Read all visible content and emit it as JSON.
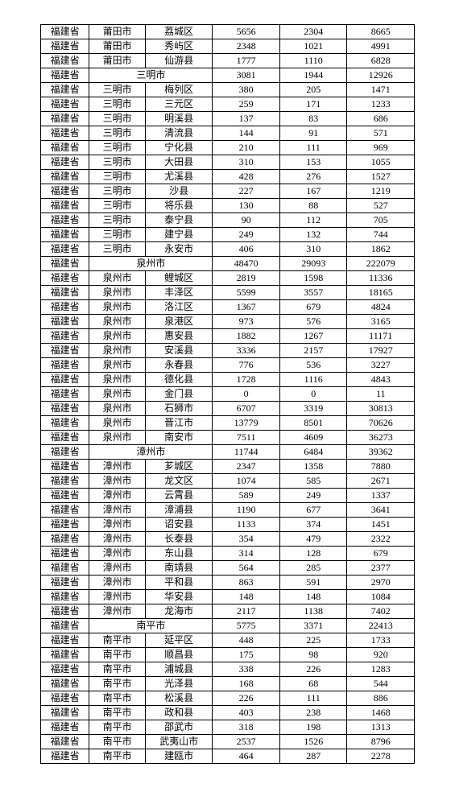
{
  "rows": [
    {
      "province": "福建省",
      "city": "莆田市",
      "district": "荔城区",
      "v1": "5656",
      "v2": "2304",
      "v3": "8665"
    },
    {
      "province": "福建省",
      "city": "莆田市",
      "district": "秀屿区",
      "v1": "2348",
      "v2": "1021",
      "v3": "4991"
    },
    {
      "province": "福建省",
      "city": "莆田市",
      "district": "仙游县",
      "v1": "1777",
      "v2": "1110",
      "v3": "6828"
    },
    {
      "province": "福建省",
      "subtotal": "三明市",
      "v1": "3081",
      "v2": "1944",
      "v3": "12926"
    },
    {
      "province": "福建省",
      "city": "三明市",
      "district": "梅列区",
      "v1": "380",
      "v2": "205",
      "v3": "1471"
    },
    {
      "province": "福建省",
      "city": "三明市",
      "district": "三元区",
      "v1": "259",
      "v2": "171",
      "v3": "1233"
    },
    {
      "province": "福建省",
      "city": "三明市",
      "district": "明溪县",
      "v1": "137",
      "v2": "83",
      "v3": "686"
    },
    {
      "province": "福建省",
      "city": "三明市",
      "district": "清流县",
      "v1": "144",
      "v2": "91",
      "v3": "571"
    },
    {
      "province": "福建省",
      "city": "三明市",
      "district": "宁化县",
      "v1": "210",
      "v2": "111",
      "v3": "969"
    },
    {
      "province": "福建省",
      "city": "三明市",
      "district": "大田县",
      "v1": "310",
      "v2": "153",
      "v3": "1055"
    },
    {
      "province": "福建省",
      "city": "三明市",
      "district": "尤溪县",
      "v1": "428",
      "v2": "276",
      "v3": "1527"
    },
    {
      "province": "福建省",
      "city": "三明市",
      "district": "沙县",
      "v1": "227",
      "v2": "167",
      "v3": "1219"
    },
    {
      "province": "福建省",
      "city": "三明市",
      "district": "将乐县",
      "v1": "130",
      "v2": "88",
      "v3": "527"
    },
    {
      "province": "福建省",
      "city": "三明市",
      "district": "泰宁县",
      "v1": "90",
      "v2": "112",
      "v3": "705"
    },
    {
      "province": "福建省",
      "city": "三明市",
      "district": "建宁县",
      "v1": "249",
      "v2": "132",
      "v3": "744"
    },
    {
      "province": "福建省",
      "city": "三明市",
      "district": "永安市",
      "v1": "406",
      "v2": "310",
      "v3": "1862"
    },
    {
      "province": "福建省",
      "subtotal": "泉州市",
      "v1": "48470",
      "v2": "29093",
      "v3": "222079"
    },
    {
      "province": "福建省",
      "city": "泉州市",
      "district": "鲤城区",
      "v1": "2819",
      "v2": "1598",
      "v3": "11336"
    },
    {
      "province": "福建省",
      "city": "泉州市",
      "district": "丰泽区",
      "v1": "5599",
      "v2": "3557",
      "v3": "18165"
    },
    {
      "province": "福建省",
      "city": "泉州市",
      "district": "洛江区",
      "v1": "1367",
      "v2": "679",
      "v3": "4824"
    },
    {
      "province": "福建省",
      "city": "泉州市",
      "district": "泉港区",
      "v1": "973",
      "v2": "576",
      "v3": "3165"
    },
    {
      "province": "福建省",
      "city": "泉州市",
      "district": "惠安县",
      "v1": "1882",
      "v2": "1267",
      "v3": "11171"
    },
    {
      "province": "福建省",
      "city": "泉州市",
      "district": "安溪县",
      "v1": "3336",
      "v2": "2157",
      "v3": "17927"
    },
    {
      "province": "福建省",
      "city": "泉州市",
      "district": "永春县",
      "v1": "776",
      "v2": "536",
      "v3": "3227"
    },
    {
      "province": "福建省",
      "city": "泉州市",
      "district": "德化县",
      "v1": "1728",
      "v2": "1116",
      "v3": "4843"
    },
    {
      "province": "福建省",
      "city": "泉州市",
      "district": "金门县",
      "v1": "0",
      "v2": "0",
      "v3": "11"
    },
    {
      "province": "福建省",
      "city": "泉州市",
      "district": "石狮市",
      "v1": "6707",
      "v2": "3319",
      "v3": "30813"
    },
    {
      "province": "福建省",
      "city": "泉州市",
      "district": "晋江市",
      "v1": "13779",
      "v2": "8501",
      "v3": "70626"
    },
    {
      "province": "福建省",
      "city": "泉州市",
      "district": "南安市",
      "v1": "7511",
      "v2": "4609",
      "v3": "36273"
    },
    {
      "province": "福建省",
      "subtotal": "漳州市",
      "v1": "11744",
      "v2": "6484",
      "v3": "39362"
    },
    {
      "province": "福建省",
      "city": "漳州市",
      "district": "芗城区",
      "v1": "2347",
      "v2": "1358",
      "v3": "7880"
    },
    {
      "province": "福建省",
      "city": "漳州市",
      "district": "龙文区",
      "v1": "1074",
      "v2": "585",
      "v3": "2671"
    },
    {
      "province": "福建省",
      "city": "漳州市",
      "district": "云霄县",
      "v1": "589",
      "v2": "249",
      "v3": "1337"
    },
    {
      "province": "福建省",
      "city": "漳州市",
      "district": "漳浦县",
      "v1": "1190",
      "v2": "677",
      "v3": "3641"
    },
    {
      "province": "福建省",
      "city": "漳州市",
      "district": "诏安县",
      "v1": "1133",
      "v2": "374",
      "v3": "1451"
    },
    {
      "province": "福建省",
      "city": "漳州市",
      "district": "长泰县",
      "v1": "354",
      "v2": "479",
      "v3": "2322"
    },
    {
      "province": "福建省",
      "city": "漳州市",
      "district": "东山县",
      "v1": "314",
      "v2": "128",
      "v3": "679"
    },
    {
      "province": "福建省",
      "city": "漳州市",
      "district": "南靖县",
      "v1": "564",
      "v2": "285",
      "v3": "2377"
    },
    {
      "province": "福建省",
      "city": "漳州市",
      "district": "平和县",
      "v1": "863",
      "v2": "591",
      "v3": "2970"
    },
    {
      "province": "福建省",
      "city": "漳州市",
      "district": "华安县",
      "v1": "148",
      "v2": "148",
      "v3": "1084"
    },
    {
      "province": "福建省",
      "city": "漳州市",
      "district": "龙海市",
      "v1": "2117",
      "v2": "1138",
      "v3": "7402"
    },
    {
      "province": "福建省",
      "subtotal": "南平市",
      "v1": "5775",
      "v2": "3371",
      "v3": "22413"
    },
    {
      "province": "福建省",
      "city": "南平市",
      "district": "延平区",
      "v1": "448",
      "v2": "225",
      "v3": "1733"
    },
    {
      "province": "福建省",
      "city": "南平市",
      "district": "顺昌县",
      "v1": "175",
      "v2": "98",
      "v3": "920"
    },
    {
      "province": "福建省",
      "city": "南平市",
      "district": "浦城县",
      "v1": "338",
      "v2": "226",
      "v3": "1283"
    },
    {
      "province": "福建省",
      "city": "南平市",
      "district": "光泽县",
      "v1": "168",
      "v2": "68",
      "v3": "544"
    },
    {
      "province": "福建省",
      "city": "南平市",
      "district": "松溪县",
      "v1": "226",
      "v2": "111",
      "v3": "886"
    },
    {
      "province": "福建省",
      "city": "南平市",
      "district": "政和县",
      "v1": "403",
      "v2": "238",
      "v3": "1468"
    },
    {
      "province": "福建省",
      "city": "南平市",
      "district": "邵武市",
      "v1": "318",
      "v2": "198",
      "v3": "1313"
    },
    {
      "province": "福建省",
      "city": "南平市",
      "district": "武夷山市",
      "v1": "2537",
      "v2": "1526",
      "v3": "8796"
    },
    {
      "province": "福建省",
      "city": "南平市",
      "district": "建瓯市",
      "v1": "464",
      "v2": "287",
      "v3": "2278"
    }
  ]
}
